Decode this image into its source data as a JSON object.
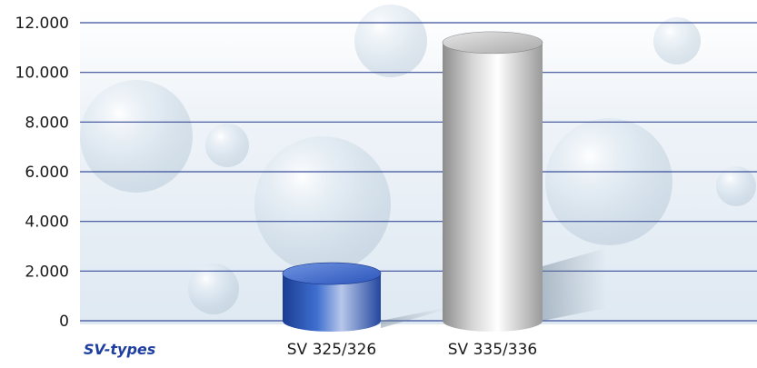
{
  "chart_data": {
    "type": "bar",
    "style": "3d-cylinder",
    "title": "",
    "xlabel": "SV-types",
    "ylabel": "",
    "categories": [
      "SV 325/326",
      "SV 335/336"
    ],
    "values": [
      1900,
      11200
    ],
    "ylim": [
      0,
      12000
    ],
    "yticks": [
      0,
      2000,
      4000,
      6000,
      8000,
      10000,
      12000
    ],
    "ytick_labels": [
      "0",
      "2.000",
      "4.000",
      "6.000",
      "8.000",
      "10.000",
      "12.000"
    ],
    "grid": true,
    "legend": "none",
    "colors": {
      "gridline": "#3a4f9a",
      "axis_title": "#1f3fa0",
      "bar1": "#2f58c0",
      "bar2": "#c8c8c8",
      "background_tint": "#e4edf5"
    }
  }
}
